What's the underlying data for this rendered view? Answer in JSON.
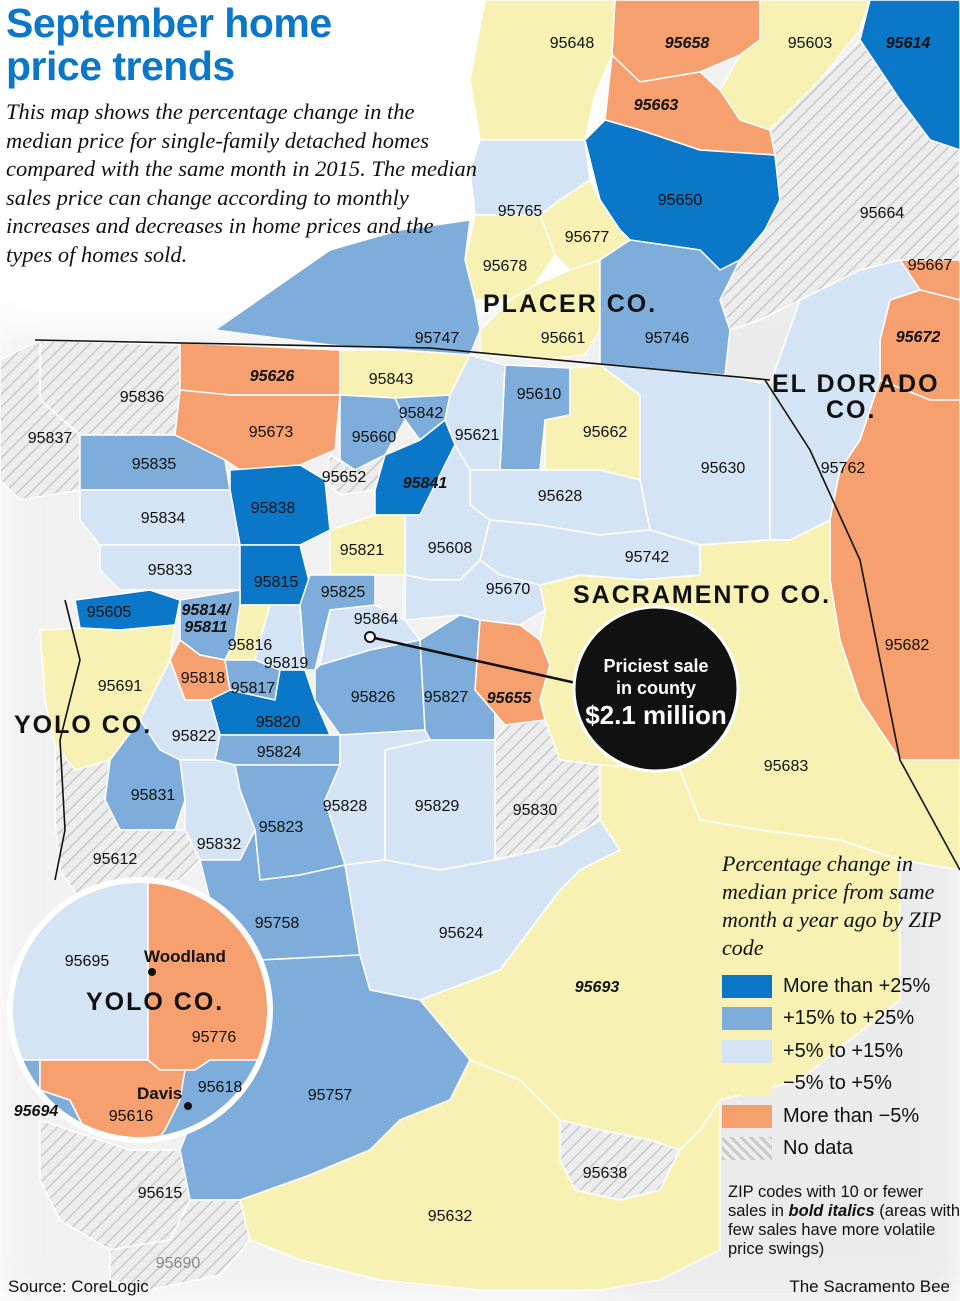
{
  "title": "September home price trends",
  "intro": "This map shows the percentage change in the median price for single-family detached homes compared with the same month in 2015. The median sales price can change according to monthly increases and decreases in home prices and the types of homes sold.",
  "colors": {
    "more_than_25": "#0a77c9",
    "p15_to_25": "#7eaddb",
    "p5_to_15": "#d4e4f4",
    "m5_to_5": "#f7f2b4",
    "less_than_m5": "#f5a06e",
    "no_data": "#e2e2e2",
    "title_blue": "#0a77c9"
  },
  "legend": {
    "title": "Percentage change in median price from same month a year ago by ZIP code",
    "items": [
      {
        "label": "More than +25%",
        "color": "#0a77c9"
      },
      {
        "label": "+15% to +25%",
        "color": "#7eaddb"
      },
      {
        "label": "+5% to +15%",
        "color": "#d4e4f4"
      },
      {
        "label": "−5% to +5%",
        "color": "#f7f2b4"
      },
      {
        "label": "More than −5%",
        "color": "#f5a06e"
      },
      {
        "label": "No data",
        "color": "hatched"
      }
    ],
    "note_part1": "ZIP codes with 10 or fewer sales in ",
    "note_bold": "bold italics",
    "note_part2": " (areas with few sales have more volatile price swings)"
  },
  "counties": {
    "placer": "PLACER CO.",
    "el_dorado_line1": "EL DORADO",
    "el_dorado_line2": "CO.",
    "sacramento": "SACRAMENTO CO.",
    "yolo": "YOLO CO.",
    "yolo_inset": "YOLO CO."
  },
  "cities": {
    "woodland": "Woodland",
    "davis": "Davis"
  },
  "callout": {
    "line1": "Priciest sale",
    "line2": "in county",
    "line3": "$2.1 million",
    "zip": "95864"
  },
  "zip_codes": [
    {
      "zip": "95648",
      "category": "m5_to_5",
      "bold": false
    },
    {
      "zip": "95658",
      "category": "less_than_m5",
      "bold": true
    },
    {
      "zip": "95603",
      "category": "m5_to_5",
      "bold": false
    },
    {
      "zip": "95614",
      "category": "more_than_25",
      "bold": true
    },
    {
      "zip": "95663",
      "category": "less_than_m5",
      "bold": true
    },
    {
      "zip": "95650",
      "category": "more_than_25",
      "bold": false
    },
    {
      "zip": "95664",
      "category": "no_data",
      "bold": false
    },
    {
      "zip": "95765",
      "category": "p5_to_15",
      "bold": false
    },
    {
      "zip": "95677",
      "category": "m5_to_5",
      "bold": false
    },
    {
      "zip": "95678",
      "category": "m5_to_5",
      "bold": false
    },
    {
      "zip": "95667",
      "category": "less_than_m5",
      "bold": false
    },
    {
      "zip": "95672",
      "category": "less_than_m5",
      "bold": true
    },
    {
      "zip": "95747",
      "category": "p15_to_25",
      "bold": false
    },
    {
      "zip": "95661",
      "category": "m5_to_5",
      "bold": false
    },
    {
      "zip": "95746",
      "category": "p15_to_25",
      "bold": false
    },
    {
      "zip": "95626",
      "category": "less_than_m5",
      "bold": true
    },
    {
      "zip": "95843",
      "category": "m5_to_5",
      "bold": false
    },
    {
      "zip": "95836",
      "category": "no_data",
      "bold": false
    },
    {
      "zip": "95610",
      "category": "p15_to_25",
      "bold": false
    },
    {
      "zip": "95842",
      "category": "p15_to_25",
      "bold": false
    },
    {
      "zip": "95837",
      "category": "no_data",
      "bold": false
    },
    {
      "zip": "95673",
      "category": "less_than_m5",
      "bold": false
    },
    {
      "zip": "95660",
      "category": "p15_to_25",
      "bold": false
    },
    {
      "zip": "95621",
      "category": "p5_to_15",
      "bold": false
    },
    {
      "zip": "95662",
      "category": "m5_to_5",
      "bold": false
    },
    {
      "zip": "95630",
      "category": "p5_to_15",
      "bold": false
    },
    {
      "zip": "95762",
      "category": "p5_to_15",
      "bold": false
    },
    {
      "zip": "95835",
      "category": "p15_to_25",
      "bold": false
    },
    {
      "zip": "95652",
      "category": "no_data",
      "bold": false
    },
    {
      "zip": "95841",
      "category": "more_than_25",
      "bold": true
    },
    {
      "zip": "95838",
      "category": "more_than_25",
      "bold": false
    },
    {
      "zip": "95628",
      "category": "p5_to_15",
      "bold": false
    },
    {
      "zip": "95834",
      "category": "p5_to_15",
      "bold": false
    },
    {
      "zip": "95608",
      "category": "p5_to_15",
      "bold": false
    },
    {
      "zip": "95821",
      "category": "m5_to_5",
      "bold": false
    },
    {
      "zip": "95742",
      "category": "p5_to_15",
      "bold": false
    },
    {
      "zip": "95833",
      "category": "p5_to_15",
      "bold": false
    },
    {
      "zip": "95815",
      "category": "more_than_25",
      "bold": false
    },
    {
      "zip": "95825",
      "category": "p15_to_25",
      "bold": false
    },
    {
      "zip": "95670",
      "category": "p5_to_15",
      "bold": false
    },
    {
      "zip": "95605",
      "category": "more_than_25",
      "bold": false
    },
    {
      "zip": "95814/95811",
      "category": "p15_to_25",
      "bold": true
    },
    {
      "zip": "95864",
      "category": "p5_to_15",
      "bold": false
    },
    {
      "zip": "95816",
      "category": "m5_to_5",
      "bold": false
    },
    {
      "zip": "95819",
      "category": "p5_to_15",
      "bold": false
    },
    {
      "zip": "95682",
      "category": "less_than_m5",
      "bold": false
    },
    {
      "zip": "95691",
      "category": "m5_to_5",
      "bold": false
    },
    {
      "zip": "95818",
      "category": "less_than_m5",
      "bold": false
    },
    {
      "zip": "95817",
      "category": "p15_to_25",
      "bold": false
    },
    {
      "zip": "95826",
      "category": "p15_to_25",
      "bold": false
    },
    {
      "zip": "95827",
      "category": "p15_to_25",
      "bold": false
    },
    {
      "zip": "95655",
      "category": "less_than_m5",
      "bold": true
    },
    {
      "zip": "95820",
      "category": "more_than_25",
      "bold": false
    },
    {
      "zip": "95822",
      "category": "p5_to_15",
      "bold": false
    },
    {
      "zip": "95824",
      "category": "p15_to_25",
      "bold": false
    },
    {
      "zip": "95683",
      "category": "m5_to_5",
      "bold": false
    },
    {
      "zip": "95831",
      "category": "p15_to_25",
      "bold": false
    },
    {
      "zip": "95828",
      "category": "p5_to_15",
      "bold": false
    },
    {
      "zip": "95829",
      "category": "p5_to_15",
      "bold": false
    },
    {
      "zip": "95830",
      "category": "no_data",
      "bold": false
    },
    {
      "zip": "95823",
      "category": "p15_to_25",
      "bold": false
    },
    {
      "zip": "95832",
      "category": "p5_to_15",
      "bold": false
    },
    {
      "zip": "95612",
      "category": "no_data",
      "bold": false
    },
    {
      "zip": "95758",
      "category": "p15_to_25",
      "bold": false
    },
    {
      "zip": "95624",
      "category": "p5_to_15",
      "bold": false
    },
    {
      "zip": "95693",
      "category": "m5_to_5",
      "bold": true
    },
    {
      "zip": "95695",
      "category": "p5_to_15",
      "bold": false
    },
    {
      "zip": "95776",
      "category": "less_than_m5",
      "bold": false
    },
    {
      "zip": "95618",
      "category": "p15_to_25",
      "bold": false
    },
    {
      "zip": "95616",
      "category": "less_than_m5",
      "bold": false
    },
    {
      "zip": "95694",
      "category": "p15_to_25",
      "bold": true
    },
    {
      "zip": "95757",
      "category": "p15_to_25",
      "bold": false
    },
    {
      "zip": "95638",
      "category": "no_data",
      "bold": false
    },
    {
      "zip": "95615",
      "category": "no_data",
      "bold": false
    },
    {
      "zip": "95632",
      "category": "m5_to_5",
      "bold": false
    },
    {
      "zip": "95690",
      "category": "no_data",
      "bold": false
    }
  ],
  "source": "Source: CoreLogic",
  "credit": "The Sacramento Bee"
}
